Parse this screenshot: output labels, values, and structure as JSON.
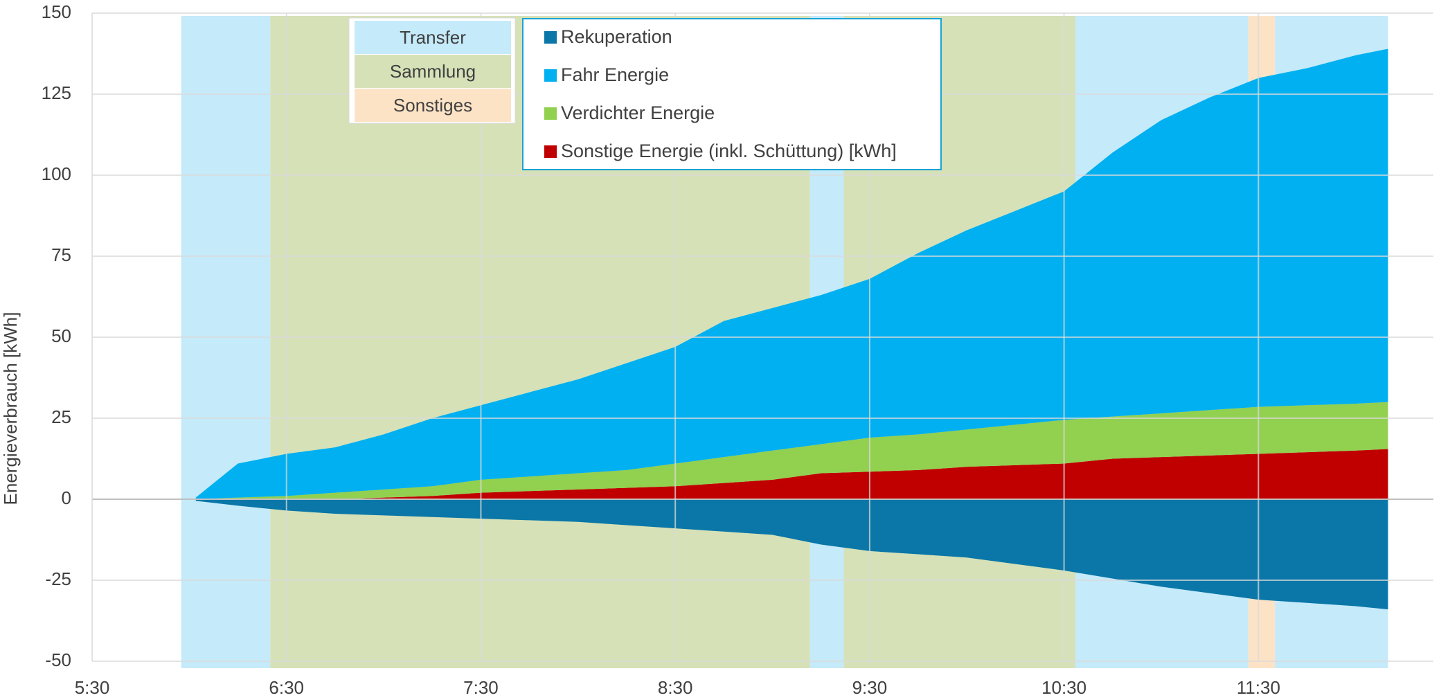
{
  "chart_data": {
    "type": "area",
    "ylabel": "Energieverbrauch [kWh]",
    "x": [
      362,
      375,
      390,
      405,
      420,
      435,
      450,
      465,
      480,
      495,
      510,
      525,
      540,
      555,
      570,
      585,
      600,
      615,
      630,
      645,
      660,
      675,
      690,
      705,
      720,
      730
    ],
    "series": [
      {
        "name": "Rekuperation",
        "color": "#0a77a8",
        "values": [
          -0.5,
          -2,
          -3.5,
          -4.5,
          -5,
          -5.5,
          -6,
          -6.5,
          -7,
          -8,
          -9,
          -10,
          -11,
          -14,
          -16,
          -17,
          -18,
          -20,
          -22,
          -24.5,
          -27,
          -29,
          -31,
          -32,
          -33,
          -34
        ]
      },
      {
        "name": "Fahr Energie",
        "color": "#00b0f0",
        "values": [
          0.5,
          10.5,
          13,
          14,
          17,
          21,
          23,
          26,
          29,
          33,
          36,
          42,
          44,
          46,
          49,
          56,
          61.5,
          66,
          70.5,
          81.5,
          90.5,
          96.5,
          101.5,
          104,
          107.5,
          109
        ]
      },
      {
        "name": "Verdichter Energie",
        "color": "#92d050",
        "values": [
          0,
          0.5,
          1,
          2,
          2.5,
          3,
          4,
          4.5,
          5,
          5.5,
          7,
          8,
          9,
          9,
          10.5,
          11,
          11.5,
          12.5,
          13.5,
          13,
          13.5,
          14,
          14.5,
          14.5,
          14.5,
          14.5
        ]
      },
      {
        "name": "Sonstige Energie (inkl. Schüttung) [kWh]",
        "color": "#c00000",
        "values": [
          0,
          0,
          0,
          0,
          0.5,
          1,
          2,
          2.5,
          3,
          3.5,
          4,
          5,
          6,
          8,
          8.5,
          9,
          10,
          10.5,
          11,
          12.5,
          13,
          13.5,
          14,
          14.5,
          15,
          15.5
        ]
      }
    ],
    "phase_legend": [
      {
        "name": "Transfer",
        "color": "#c5eafa"
      },
      {
        "name": "Sammlung",
        "color": "#d6e1b8"
      },
      {
        "name": "Sonstiges",
        "color": "#fde3c6"
      }
    ],
    "phases": [
      {
        "kind": 0,
        "start": 357.5,
        "end": 385
      },
      {
        "kind": 1,
        "start": 385,
        "end": 551.6
      },
      {
        "kind": 0,
        "start": 551.6,
        "end": 562
      },
      {
        "kind": 1,
        "start": 562,
        "end": 633.5
      },
      {
        "kind": 0,
        "start": 633.5,
        "end": 686.9
      },
      {
        "kind": 2,
        "start": 686.9,
        "end": 695.1
      },
      {
        "kind": 0,
        "start": 695.1,
        "end": 730
      }
    ],
    "xlim": [
      330,
      744
    ],
    "xticks": [
      {
        "value": 330,
        "label": "5:30"
      },
      {
        "value": 390,
        "label": "6:30"
      },
      {
        "value": 450,
        "label": "7:30"
      },
      {
        "value": 510,
        "label": "8:30"
      },
      {
        "value": 570,
        "label": "9:30"
      },
      {
        "value": 630,
        "label": "10:30"
      },
      {
        "value": 690,
        "label": "11:30"
      }
    ],
    "ylim": [
      -50,
      150
    ],
    "yticks": [
      -50,
      -25,
      0,
      25,
      50,
      75,
      100,
      125,
      150
    ],
    "grid": true
  }
}
